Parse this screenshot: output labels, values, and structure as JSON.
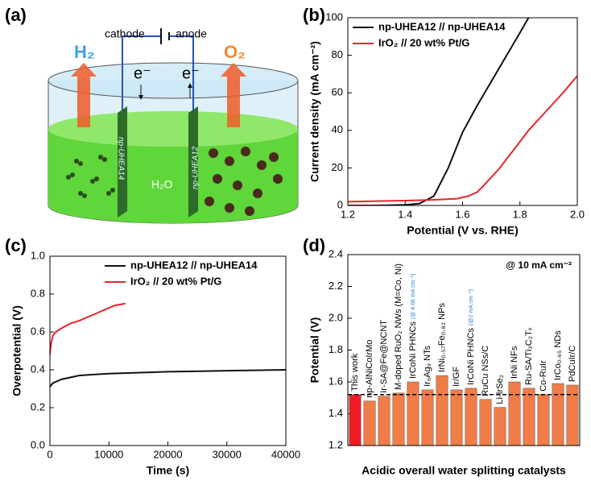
{
  "panel_labels": [
    "(a)",
    "(b)",
    "(c)",
    "(d)"
  ],
  "diagram": {
    "cathode": "cathode",
    "anode": "anode",
    "electron_left": "e⁻",
    "electron_right": "e⁻",
    "gas_left": "H₂",
    "gas_right": "O₂",
    "electrode_left": "np-UHEA14",
    "electrode_right": "np-UHEA12",
    "liquid": "H₂O"
  },
  "chart_data": [
    {
      "type": "line",
      "xlabel": "Potential (V vs. RHE)",
      "ylabel": "Current density (mA cm⁻²)",
      "xlim": [
        1.2,
        2.0
      ],
      "xticks": [
        1.2,
        1.4,
        1.6,
        1.8,
        {
          "value": 2,
          "label": "2.0"
        }
      ],
      "ylim": [
        0,
        100
      ],
      "yticks": [
        0,
        20,
        40,
        60,
        80,
        100
      ],
      "legend": "upper left",
      "series": [
        {
          "name": "np-UHEA12 // np-UHEA14",
          "color": "#111111",
          "x": [
            1.2,
            1.3,
            1.4,
            1.45,
            1.5,
            1.55,
            1.6,
            1.65,
            1.7,
            1.75,
            1.8,
            1.83
          ],
          "values": [
            0,
            0,
            0.3,
            1,
            5,
            20,
            39,
            53,
            66,
            79,
            92,
            100
          ]
        },
        {
          "name": "IrO₂ // 20 wt% Pt/G",
          "color": "#e8242c",
          "x": [
            1.2,
            1.3,
            1.4,
            1.5,
            1.58,
            1.62,
            1.65,
            1.67,
            1.7,
            1.73,
            1.78,
            1.83,
            1.89,
            1.95,
            2.0
          ],
          "values": [
            2,
            2.3,
            2.6,
            3,
            3.6,
            5,
            7,
            10,
            15,
            20,
            30,
            40,
            50,
            60,
            69
          ]
        }
      ]
    },
    {
      "type": "line",
      "xlabel": "Time (s)",
      "ylabel": "Overpotential (V)",
      "xlim": [
        0,
        40000
      ],
      "xticks": [
        0,
        10000,
        20000,
        30000,
        40000
      ],
      "ylim": [
        0,
        1
      ],
      "yticks": [
        {
          "value": 0,
          "label": "0.0"
        },
        0.2,
        0.4,
        0.6,
        0.8,
        {
          "value": 1,
          "label": "1.0"
        }
      ],
      "legend": "upper right",
      "series": [
        {
          "name": "np-UHEA12 // np-UHEA14",
          "color": "#111111",
          "x": [
            0,
            500,
            2000,
            5000,
            10000,
            20000,
            30000,
            40000
          ],
          "values": [
            0.31,
            0.33,
            0.35,
            0.37,
            0.38,
            0.39,
            0.395,
            0.4
          ]
        },
        {
          "name": "IrO₂ // 20 wt% Pt/G",
          "color": "#e8242c",
          "x": [
            0,
            200,
            500,
            1000,
            2000,
            3500,
            5000,
            8000,
            11000,
            12800
          ],
          "values": [
            0.48,
            0.54,
            0.58,
            0.6,
            0.62,
            0.645,
            0.66,
            0.7,
            0.74,
            0.75
          ]
        }
      ]
    },
    {
      "type": "bar",
      "xlabel": "Acidic overall water splitting catalysts",
      "ylabel": "Potential (V)",
      "annotation": "@ 10 mA cm⁻²",
      "ylim": [
        1.2,
        2.4
      ],
      "yticks": [
        1.2,
        1.4,
        1.6,
        1.8,
        {
          "value": 2,
          "label": "2.0"
        },
        2.2,
        2.4
      ],
      "categories": [
        "This work",
        "np-AlNiCoIrMo",
        "Ir-SA@Fe@NCNT",
        "M-doped RuO₂ NWs (M=Co, Ni)",
        "IrCoNi PHNCs",
        "Ir₆Ag₉ NTs",
        "IrNi₀.₅₇Fe₀.₈₂ NPs",
        "Ir/GF",
        "IrCoNi PHNCs",
        "RuCu NSs/C",
        "Li-IrSe₂",
        "IrNi NFs",
        "Ru-SA/Ti₃C₂Tₓ",
        "Co-RuIr",
        "IrCo₀.₆₅ NDs",
        "PdCuIr/C"
      ],
      "category_notes": [
        null,
        null,
        null,
        null,
        "(@ 4.66 mA cm⁻²)",
        null,
        null,
        null,
        "(@2 mA cm⁻²)",
        null,
        null,
        null,
        null,
        null,
        null,
        null
      ],
      "values": [
        1.52,
        1.48,
        1.51,
        1.53,
        1.6,
        1.55,
        1.64,
        1.55,
        1.56,
        1.49,
        1.44,
        1.6,
        1.56,
        1.52,
        1.59,
        1.58
      ],
      "colors": [
        "#ee1c25",
        "#f07c48",
        "#f07c48",
        "#f07c48",
        "#f07c48",
        "#f07c48",
        "#f07c48",
        "#f07c48",
        "#f07c48",
        "#f07c48",
        "#f07c48",
        "#f07c48",
        "#f07c48",
        "#f07c48",
        "#f07c48",
        "#f07c48"
      ],
      "note_color": "#2a7fd4",
      "reference_line": 1.52
    }
  ]
}
